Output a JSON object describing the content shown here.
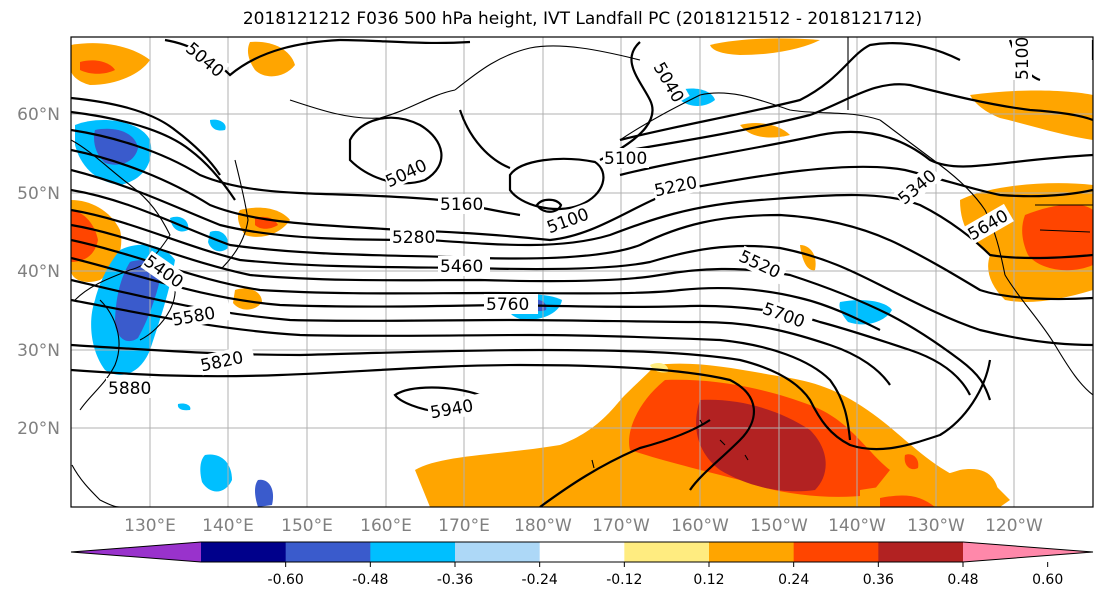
{
  "title": "2018121212 F036 500 hPa height, IVT Landfall PC (2018121512 - 2018121712)",
  "lat_labels": [
    "60°N",
    "50°N",
    "40°N",
    "30°N",
    "20°N"
  ],
  "lon_labels": [
    "130°E",
    "140°E",
    "150°E",
    "160°E",
    "170°E",
    "180°W",
    "170°W",
    "160°W",
    "150°W",
    "140°W",
    "130°W",
    "120°W"
  ],
  "colorbar": {
    "colors": [
      "#9932CC",
      "#00008B",
      "#3A5BCC",
      "#00BFFF",
      "#ADD8F7",
      "#FFFFFF",
      "#FFEC80",
      "#FFA500",
      "#FF4500",
      "#B22222",
      "#FF88AA"
    ],
    "tick_labels": [
      "-0.60",
      "-0.48",
      "-0.36",
      "-0.24",
      "-0.12",
      "0.12",
      "0.24",
      "0.36",
      "0.48",
      "0.60"
    ]
  },
  "contour_labels": [
    "5040",
    "5040",
    "5040",
    "5100",
    "5100",
    "5100",
    "5160",
    "5220",
    "5280",
    "5340",
    "5400",
    "5460",
    "5520",
    "5580",
    "5640",
    "5700",
    "5760",
    "5820",
    "5880",
    "5940"
  ],
  "colors": {
    "grid": "#b0b0b0",
    "contour": "#000000",
    "positive_high": "#B22222",
    "positive_mid": "#FF4500",
    "positive_low": "#FFA500",
    "negative_mid": "#3A5BCC",
    "negative_low": "#00BFFF"
  }
}
